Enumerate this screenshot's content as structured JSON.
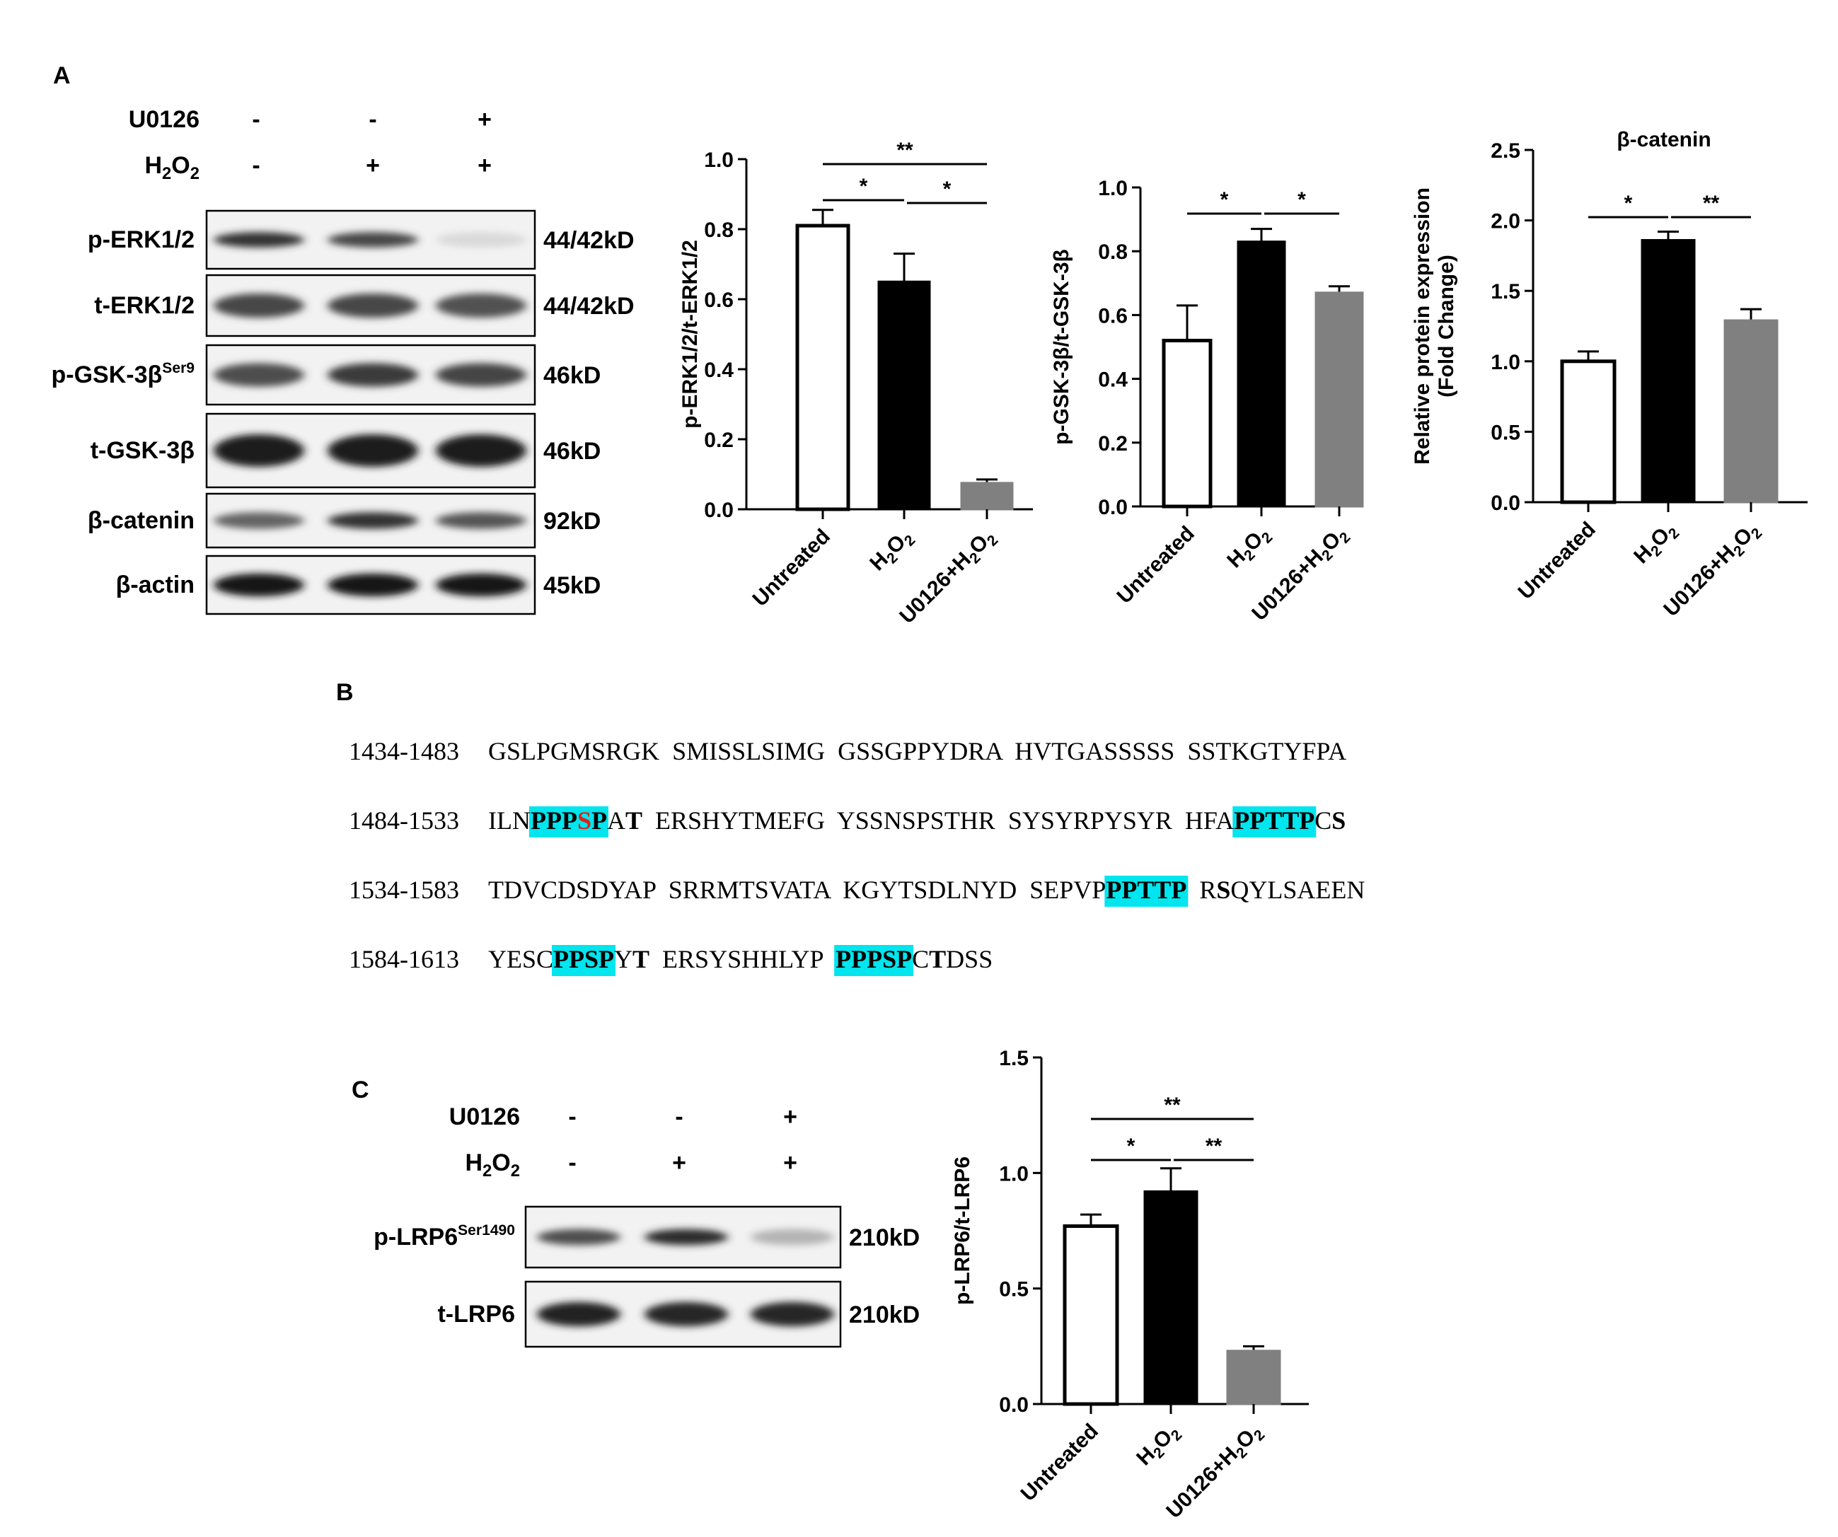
{
  "panelA": {
    "label": "A",
    "blot": {
      "treatments": [
        {
          "name_main": "U0126",
          "name_sub": "",
          "name_tail": "",
          "marks": [
            "-",
            "-",
            "+"
          ]
        },
        {
          "name_main": "H",
          "name_sub": "2",
          "name_tail": "O",
          "name_sub2": "2",
          "marks": [
            "-",
            "+",
            "+"
          ]
        }
      ],
      "rows": [
        {
          "name": "p-ERK1/2",
          "sup": "",
          "size": "44/42kD",
          "intensity": [
            0.85,
            0.75,
            0.08
          ],
          "band_h": 0.6
        },
        {
          "name": "t-ERK1/2",
          "sup": "",
          "size": "44/42kD",
          "intensity": [
            0.75,
            0.75,
            0.7
          ],
          "band_h": 0.9
        },
        {
          "name": "p-GSK-3β",
          "sup": "Ser9",
          "size": "46kD",
          "intensity": [
            0.72,
            0.8,
            0.76
          ],
          "band_h": 0.9
        },
        {
          "name": "t-GSK-3β",
          "sup": "",
          "size": "46kD",
          "intensity": [
            0.95,
            0.95,
            0.95
          ],
          "band_h": 1.0
        },
        {
          "name": "β-catenin",
          "sup": "",
          "size": "92kD",
          "intensity": [
            0.62,
            0.85,
            0.68
          ],
          "band_h": 0.7
        },
        {
          "name": "β-actin",
          "sup": "",
          "size": "45kD",
          "intensity": [
            0.98,
            0.98,
            0.98
          ],
          "band_h": 0.9
        }
      ]
    }
  },
  "panelB": {
    "label": "B",
    "lines": [
      {
        "range": "1434-1483",
        "segments": [
          {
            "t": "GSLPGMSRGK  SMISSLSIMG  GSSGPPYDRA  HVTGASSSSS  SSTKGTYFPA"
          }
        ]
      },
      {
        "range": "1484-1533",
        "segments": [
          {
            "t": "ILN"
          },
          {
            "t": "PPP",
            "b": true,
            "hl": true
          },
          {
            "t": "S",
            "b": true,
            "hl": true,
            "red": true
          },
          {
            "t": "P",
            "b": true,
            "hl": true
          },
          {
            "t": "A"
          },
          {
            "t": "T",
            "b": true
          },
          {
            "t": "  ERSHYTMEFG  YSSNSPSTHR  SYSYRPYSYR  HFA"
          },
          {
            "t": "PPTTP",
            "b": true,
            "hl": true
          },
          {
            "t": "C"
          },
          {
            "t": "S",
            "b": true
          }
        ]
      },
      {
        "range": "1534-1583",
        "segments": [
          {
            "t": "TDVCDSDYAP  SRRMTSVATA  KGYTSDLNYD  SEPVP"
          },
          {
            "t": "PPTTP",
            "b": true,
            "hl": true
          },
          {
            "t": "  R"
          },
          {
            "t": "S",
            "b": true
          },
          {
            "t": "QYLSAEEN"
          }
        ]
      },
      {
        "range": "1584-1613",
        "segments": [
          {
            "t": "YESC"
          },
          {
            "t": "PPSP",
            "b": true,
            "hl": true
          },
          {
            "t": "Y"
          },
          {
            "t": "T",
            "b": true
          },
          {
            "t": "  ERSYSHHLYP  "
          },
          {
            "t": "PPPSP",
            "b": true,
            "hl": true
          },
          {
            "t": "C"
          },
          {
            "t": "T",
            "b": true
          },
          {
            "t": "DSS"
          }
        ]
      }
    ],
    "highlight_color": "#00e5ee"
  },
  "panelC": {
    "label": "C",
    "blot": {
      "treatments": [
        {
          "name_main": "U0126",
          "marks": [
            "-",
            "-",
            "+"
          ]
        },
        {
          "name_main": "H",
          "name_sub": "2",
          "name_tail": "O",
          "name_sub2": "2",
          "marks": [
            "-",
            "+",
            "+"
          ]
        }
      ],
      "rows": [
        {
          "name": "p-LRP6",
          "sup": "Ser1490",
          "size": "210kD",
          "intensity": [
            0.72,
            0.88,
            0.25
          ],
          "band_h": 0.6
        },
        {
          "name": "t-LRP6",
          "sup": "",
          "size": "210kD",
          "intensity": [
            0.92,
            0.9,
            0.9
          ],
          "band_h": 0.85
        }
      ]
    }
  },
  "chart_data": [
    {
      "type": "bar",
      "categories": [
        "Untreated",
        "H2O2",
        "U0126+H2O2"
      ],
      "values": [
        0.81,
        0.65,
        0.075
      ],
      "errors": [
        0.045,
        0.08,
        0.01
      ],
      "ylabel": "p-ERK1/2/t-ERK1/2",
      "title": "",
      "ylim": [
        0,
        1.0
      ],
      "yticks": [
        "0.0",
        "0.2",
        "0.4",
        "0.6",
        "0.8",
        "1.0"
      ],
      "significance": [
        {
          "from": 0,
          "to": 1,
          "label": "*"
        },
        {
          "from": 1,
          "to": 2,
          "label": "*"
        },
        {
          "from": 0,
          "to": 2,
          "label": "**"
        }
      ]
    },
    {
      "type": "bar",
      "categories": [
        "Untreated",
        "H2O2",
        "U0126+H2O2"
      ],
      "values": [
        0.52,
        0.83,
        0.67
      ],
      "errors": [
        0.11,
        0.04,
        0.02
      ],
      "ylabel": "p-GSK-3β/t-GSK-3β",
      "title": "",
      "ylim": [
        0,
        1.0
      ],
      "yticks": [
        "0.0",
        "0.2",
        "0.4",
        "0.6",
        "0.8",
        "1.0"
      ],
      "significance": [
        {
          "from": 0,
          "to": 1,
          "label": "*"
        },
        {
          "from": 1,
          "to": 2,
          "label": "*"
        }
      ]
    },
    {
      "type": "bar",
      "categories": [
        "Untreated",
        "H2O2",
        "U0126+H2O2"
      ],
      "values": [
        1.0,
        1.86,
        1.29
      ],
      "errors": [
        0.07,
        0.06,
        0.08
      ],
      "ylabel": "Relative protein expression",
      "ylabel2": "(Fold Change)",
      "title": "β-catenin",
      "ylim": [
        0,
        2.5
      ],
      "yticks": [
        "0.0",
        "0.5",
        "1.0",
        "1.5",
        "2.0",
        "2.5"
      ],
      "significance": [
        {
          "from": 0,
          "to": 1,
          "label": "*"
        },
        {
          "from": 1,
          "to": 2,
          "label": "**"
        }
      ]
    },
    {
      "type": "bar",
      "categories": [
        "Untreated",
        "H2O2",
        "U0126+H2O2"
      ],
      "values": [
        0.77,
        0.92,
        0.23
      ],
      "errors": [
        0.05,
        0.1,
        0.02
      ],
      "ylabel": "p-LRP6/t-LRP6",
      "title": "",
      "ylim": [
        0,
        1.5
      ],
      "yticks": [
        "0.0",
        "0.5",
        "1.0",
        "1.5"
      ],
      "significance": [
        {
          "from": 0,
          "to": 1,
          "label": "*"
        },
        {
          "from": 1,
          "to": 2,
          "label": "**"
        },
        {
          "from": 0,
          "to": 2,
          "label": "**"
        }
      ]
    }
  ],
  "bar_fills": [
    "#ffffff",
    "#000000",
    "#808080"
  ]
}
